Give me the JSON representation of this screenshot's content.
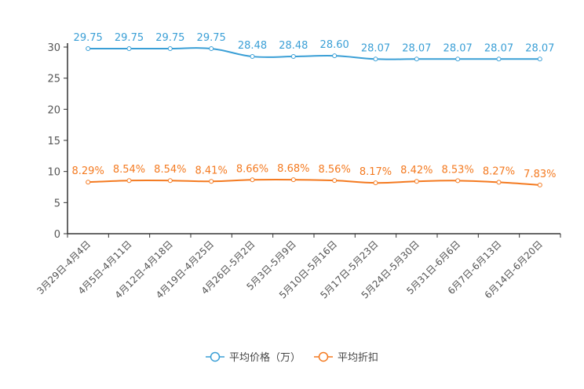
{
  "chart_data": {
    "type": "line",
    "title": "",
    "xlabel": "",
    "ylabel": "",
    "ylim": [
      0,
      30
    ],
    "yticks": [
      0,
      5,
      10,
      15,
      20,
      25,
      30
    ],
    "categories": [
      "3月29日-4月4日",
      "4月5日-4月11日",
      "4月12日-4月18日",
      "4月19日-4月25日",
      "4月26日-5月2日",
      "5月3日-5月9日",
      "5月10日-5月16日",
      "5月17日-5月23日",
      "5月24日-5月30日",
      "5月31日-6月6日",
      "6月7日-6月13日",
      "6月14日-6月20日"
    ],
    "series": [
      {
        "name": "平均价格（万）",
        "color": "#3a9fd6",
        "values": [
          29.75,
          29.75,
          29.75,
          29.75,
          28.48,
          28.48,
          28.6,
          28.07,
          28.07,
          28.07,
          28.07,
          28.07
        ],
        "labels": [
          "29.75",
          "29.75",
          "29.75",
          "29.75",
          "28.48",
          "28.48",
          "28.60",
          "28.07",
          "28.07",
          "28.07",
          "28.07",
          "28.07"
        ]
      },
      {
        "name": "平均折扣",
        "color": "#f47a20",
        "values": [
          8.29,
          8.54,
          8.54,
          8.41,
          8.66,
          8.68,
          8.56,
          8.17,
          8.42,
          8.53,
          8.27,
          7.83
        ],
        "labels": [
          "8.29%",
          "8.54%",
          "8.54%",
          "8.41%",
          "8.66%",
          "8.68%",
          "8.56%",
          "8.17%",
          "8.42%",
          "8.53%",
          "8.27%",
          "7.83%"
        ]
      }
    ],
    "legend": "bottom-center",
    "grid": false
  }
}
